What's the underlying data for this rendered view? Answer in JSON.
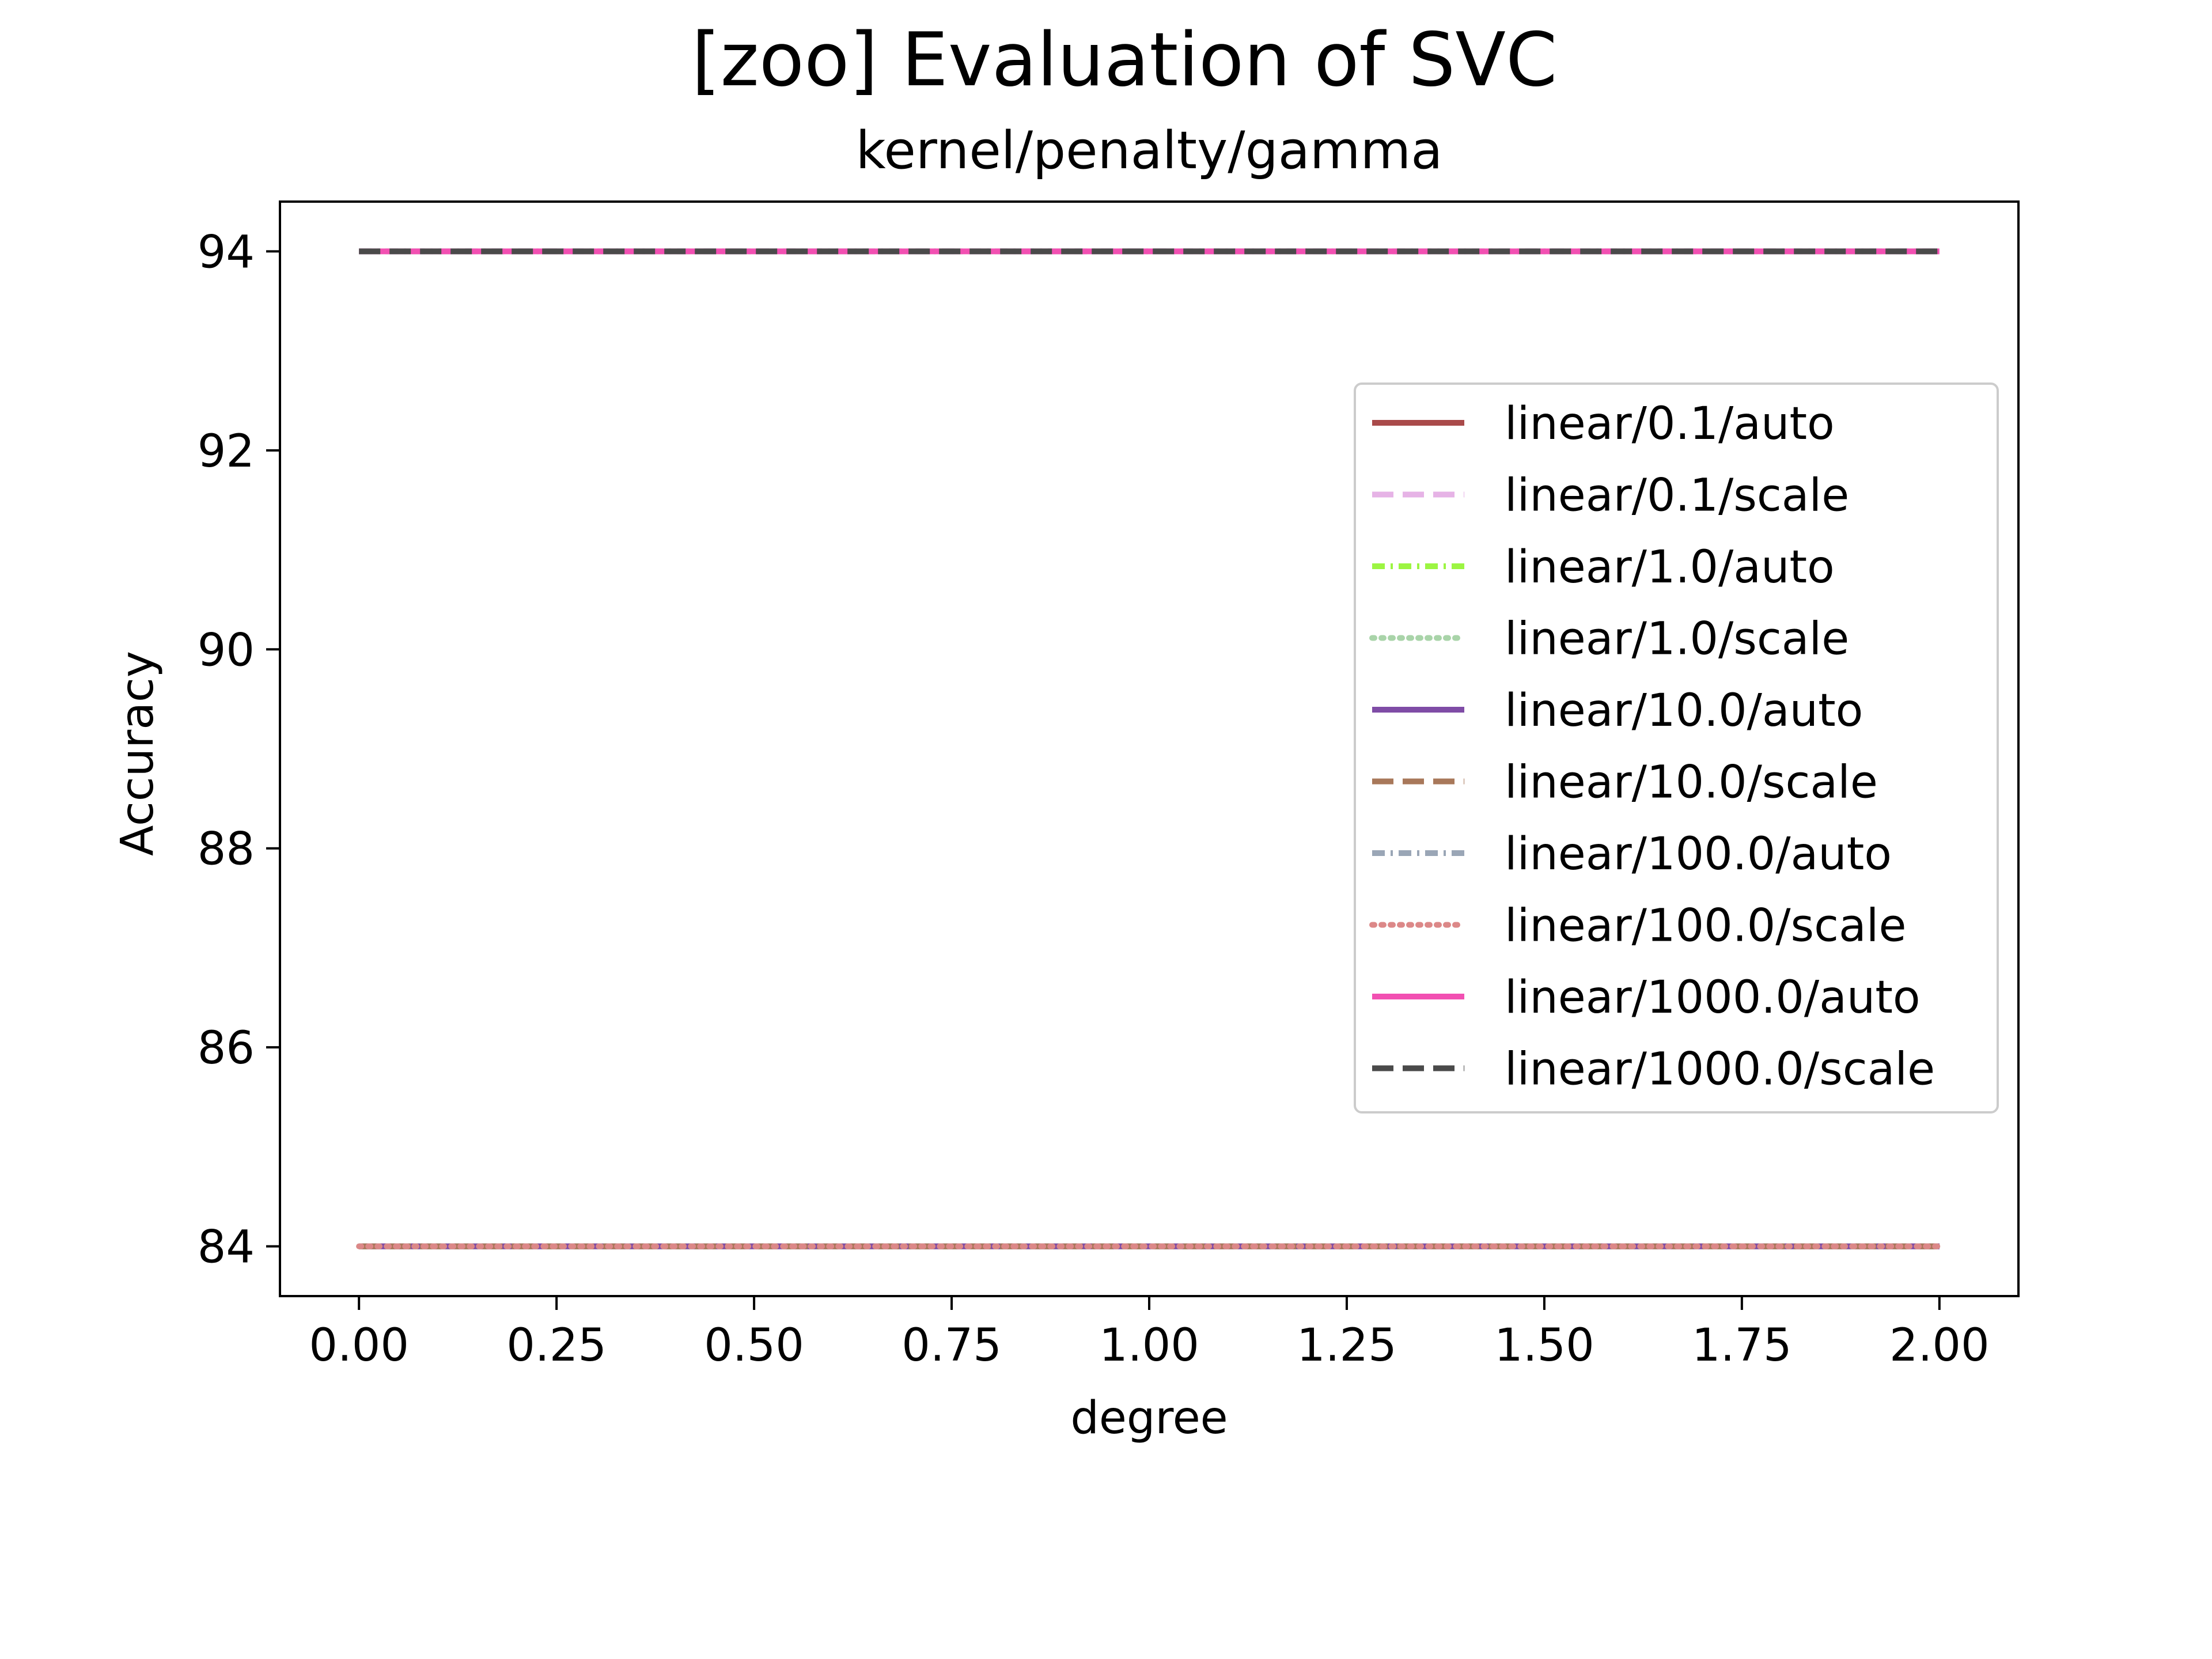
{
  "chart_data": {
    "type": "line",
    "title": "[zoo] Evaluation of SVC",
    "subtitle": "kernel/penalty/gamma",
    "xlabel": "degree",
    "ylabel": "Accuracy",
    "xlim": [
      -0.1,
      2.1
    ],
    "ylim": [
      83.5,
      94.5
    ],
    "xticks": [
      "0.00",
      "0.25",
      "0.50",
      "0.75",
      "1.00",
      "1.25",
      "1.50",
      "1.75",
      "2.00"
    ],
    "yticks": [
      "84",
      "86",
      "88",
      "90",
      "92",
      "94"
    ],
    "legend_position": "center-right",
    "x": [
      0,
      1,
      2
    ],
    "series": [
      {
        "name": "linear/0.1/auto",
        "values": [
          84,
          84,
          84
        ],
        "color": "#a94a4a",
        "dash": "solid"
      },
      {
        "name": "linear/0.1/scale",
        "values": [
          84,
          84,
          84
        ],
        "color": "#e6b3e6",
        "dash": "dashed"
      },
      {
        "name": "linear/1.0/auto",
        "values": [
          84,
          84,
          84
        ],
        "color": "#9cf542",
        "dash": "dashdot"
      },
      {
        "name": "linear/1.0/scale",
        "values": [
          84,
          84,
          84
        ],
        "color": "#a9d4a9",
        "dash": "dotted"
      },
      {
        "name": "linear/10.0/auto",
        "values": [
          84,
          84,
          84
        ],
        "color": "#7f4ca6",
        "dash": "solid"
      },
      {
        "name": "linear/10.0/scale",
        "values": [
          84,
          84,
          84
        ],
        "color": "#a8785a",
        "dash": "dashed"
      },
      {
        "name": "linear/100.0/auto",
        "values": [
          94,
          94,
          94
        ],
        "color": "#9aa6b6",
        "dash": "dashdot"
      },
      {
        "name": "linear/100.0/scale",
        "values": [
          84,
          84,
          84
        ],
        "color": "#dc8888",
        "dash": "dotted"
      },
      {
        "name": "linear/1000.0/auto",
        "values": [
          94,
          94,
          94
        ],
        "color": "#f250b2",
        "dash": "solid"
      },
      {
        "name": "linear/1000.0/scale",
        "values": [
          94,
          94,
          94
        ],
        "color": "#4a4a4a",
        "dash": "dashed"
      }
    ]
  }
}
